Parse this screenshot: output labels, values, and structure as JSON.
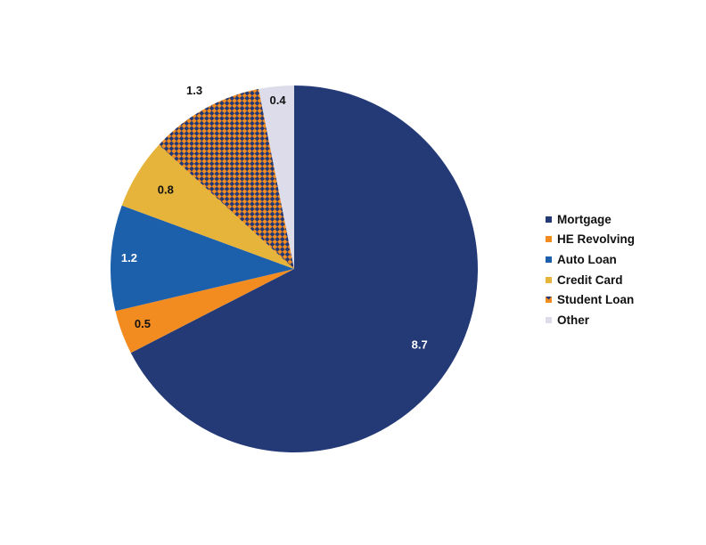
{
  "chart_data": {
    "type": "pie",
    "series": [
      {
        "name": "Mortgage",
        "value": 8.7,
        "color": "#243a77",
        "pattern": "solid",
        "label_color": "#ffffff"
      },
      {
        "name": "HE Revolving",
        "value": 0.5,
        "color": "#f28c21",
        "pattern": "solid",
        "label_color": "#111111"
      },
      {
        "name": "Auto Loan",
        "value": 1.2,
        "color": "#1c5fab",
        "pattern": "solid",
        "label_color": "#ffffff"
      },
      {
        "name": "Credit Card",
        "value": 0.8,
        "color": "#e6b43a",
        "pattern": "solid",
        "label_color": "#111111"
      },
      {
        "name": "Student Loan",
        "value": 1.3,
        "color": "#243a77",
        "pattern": "checker",
        "pattern_color": "#f28c21",
        "label_color": "#111111"
      },
      {
        "name": "Other",
        "value": 0.4,
        "color": "#dcdcea",
        "pattern": "solid",
        "label_color": "#111111"
      }
    ],
    "start_angle": "12 o'clock",
    "direction": "clockwise",
    "legend_position": "right"
  }
}
